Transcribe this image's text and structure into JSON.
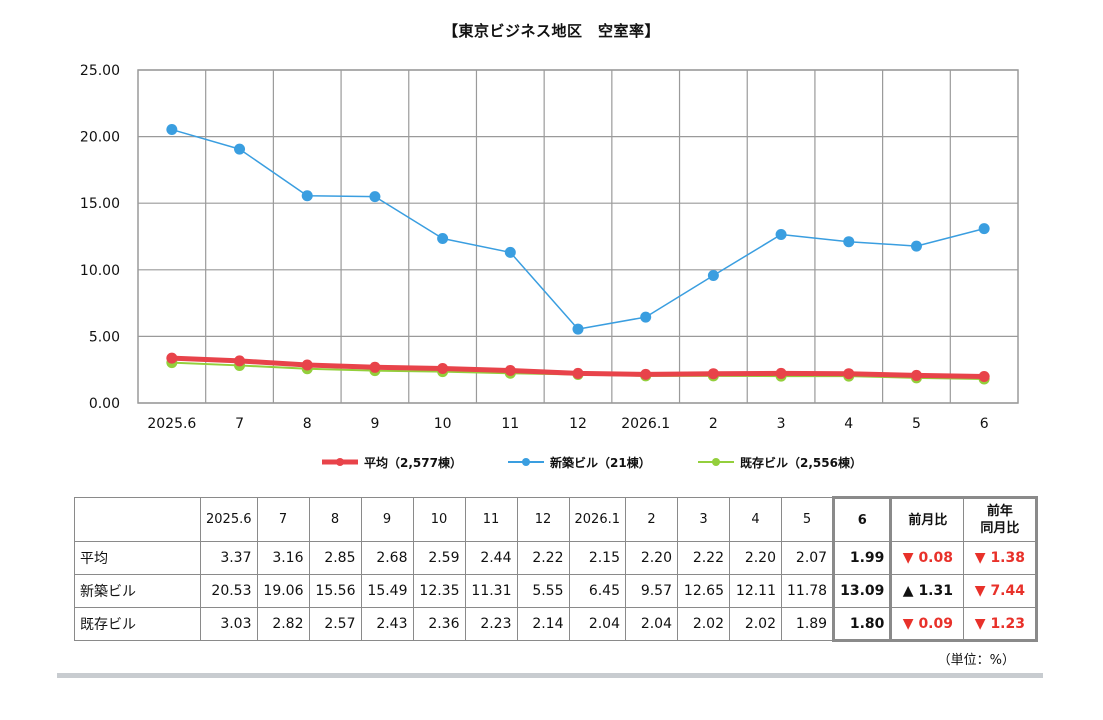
{
  "chart_data": {
    "type": "line",
    "title": "【東京ビジネス地区　空室率】",
    "categories": [
      "2025.6",
      "7",
      "8",
      "9",
      "10",
      "11",
      "12",
      "2026.1",
      "2",
      "3",
      "4",
      "5",
      "6"
    ],
    "ylim": [
      0,
      25
    ],
    "yticks": [
      "0.00",
      "5.00",
      "10.00",
      "15.00",
      "20.00",
      "25.00"
    ],
    "grid": true,
    "legend_position": "bottom",
    "series": [
      {
        "name": "平均（2,577棟）",
        "color": "#e8434a",
        "values": [
          3.37,
          3.16,
          2.85,
          2.68,
          2.59,
          2.44,
          2.22,
          2.15,
          2.2,
          2.22,
          2.2,
          2.07,
          1.99
        ]
      },
      {
        "name": "新築ビル（21棟）",
        "color": "#3a9ee0",
        "values": [
          20.53,
          19.06,
          15.56,
          15.49,
          12.35,
          11.31,
          5.55,
          6.45,
          9.57,
          12.65,
          12.11,
          11.78,
          13.09
        ]
      },
      {
        "name": "既存ビル（2,556棟）",
        "color": "#93cf3c",
        "values": [
          3.03,
          2.82,
          2.57,
          2.43,
          2.36,
          2.23,
          2.14,
          2.04,
          2.04,
          2.02,
          2.02,
          1.89,
          1.8
        ]
      }
    ]
  },
  "table": {
    "headers": [
      "2025.6",
      "7",
      "8",
      "9",
      "10",
      "11",
      "12",
      "2026.1",
      "2",
      "3",
      "4",
      "5",
      "6"
    ],
    "mom_header": "前月比",
    "yoy_header_1": "前年",
    "yoy_header_2": "同月比",
    "rows": [
      {
        "label": "平均",
        "values": [
          "3.37",
          "3.16",
          "2.85",
          "2.68",
          "2.59",
          "2.44",
          "2.22",
          "2.15",
          "2.20",
          "2.22",
          "2.20",
          "2.07",
          "1.99"
        ],
        "mom": "▼ 0.08",
        "mom_dir": "down",
        "yoy": "▼ 1.38",
        "yoy_dir": "down"
      },
      {
        "label": "新築ビル",
        "values": [
          "20.53",
          "19.06",
          "15.56",
          "15.49",
          "12.35",
          "11.31",
          "5.55",
          "6.45",
          "9.57",
          "12.65",
          "12.11",
          "11.78",
          "13.09"
        ],
        "mom": "▲ 1.31",
        "mom_dir": "up",
        "yoy": "▼ 7.44",
        "yoy_dir": "down"
      },
      {
        "label": "既存ビル",
        "values": [
          "3.03",
          "2.82",
          "2.57",
          "2.43",
          "2.36",
          "2.23",
          "2.14",
          "2.04",
          "2.04",
          "2.02",
          "2.02",
          "1.89",
          "1.80"
        ],
        "mom": "▼ 0.09",
        "mom_dir": "down",
        "yoy": "▼ 1.23",
        "yoy_dir": "down"
      }
    ]
  },
  "unit_note": "（単位：%）"
}
